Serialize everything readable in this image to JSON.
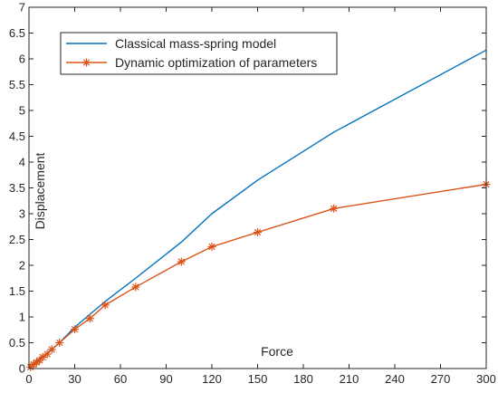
{
  "chart_data": {
    "type": "line",
    "title": "",
    "xlabel": "Force",
    "ylabel": "Displacement",
    "xlim": [
      0,
      300
    ],
    "ylim": [
      0,
      7
    ],
    "x_ticks": [
      0,
      30,
      60,
      90,
      120,
      150,
      180,
      210,
      240,
      270,
      300
    ],
    "y_ticks": [
      0,
      0.5,
      1,
      1.5,
      2,
      2.5,
      3,
      3.5,
      4,
      4.5,
      5,
      5.5,
      6,
      6.5,
      7
    ],
    "grid": false,
    "legend_position": "top-left",
    "series": [
      {
        "name": "Classical mass-spring model",
        "color": "#0072BD",
        "marker": "none",
        "x": [
          0,
          5,
          10,
          20,
          30,
          40,
          50,
          70,
          100,
          120,
          150,
          200,
          300
        ],
        "y": [
          0,
          0.15,
          0.25,
          0.5,
          0.8,
          1.05,
          1.3,
          1.75,
          2.45,
          3.0,
          3.65,
          4.58,
          6.17
        ]
      },
      {
        "name": "Dynamic optimization of parameters",
        "color": "#D95319",
        "marker": "asterisk",
        "x": [
          1,
          3,
          5,
          7,
          9,
          12,
          15,
          20,
          30,
          40,
          50,
          70,
          100,
          120,
          150,
          200,
          300
        ],
        "y": [
          0.03,
          0.08,
          0.12,
          0.16,
          0.22,
          0.28,
          0.37,
          0.5,
          0.76,
          0.97,
          1.23,
          1.58,
          2.07,
          2.36,
          2.64,
          3.1,
          3.57
        ]
      }
    ]
  }
}
